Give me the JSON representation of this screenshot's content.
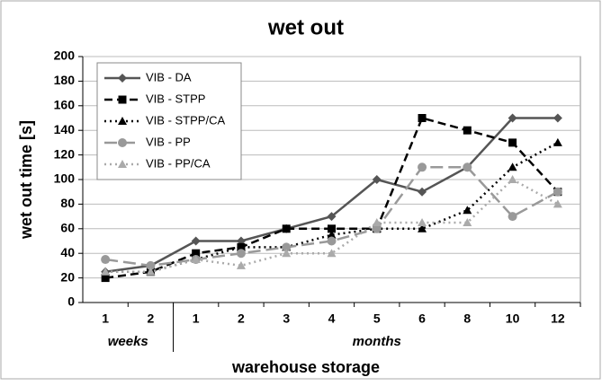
{
  "chart_data": {
    "type": "line",
    "title": "wet out",
    "x_label": "warehouse storage",
    "y_label": "wet out time [s]",
    "categories": [
      "1",
      "2",
      "1",
      "2",
      "3",
      "4",
      "5",
      "6",
      "8",
      "10",
      "12"
    ],
    "groups": [
      {
        "label": "weeks",
        "span": 2
      },
      {
        "label": "months",
        "span": 9
      }
    ],
    "series": [
      {
        "name": "VIB - DA",
        "color": "#555555",
        "dash": "solid",
        "marker": "diamond",
        "values": [
          25,
          30,
          50,
          50,
          60,
          70,
          100,
          90,
          110,
          150,
          150
        ]
      },
      {
        "name": "VIB - STPP",
        "color": "#000000",
        "dash": "dashed",
        "marker": "square",
        "values": [
          20,
          25,
          40,
          45,
          60,
          60,
          60,
          150,
          140,
          130,
          90
        ]
      },
      {
        "name": "VIB - STPP/CA",
        "color": "#000000",
        "dash": "dotted",
        "marker": "triangle",
        "values": [
          25,
          25,
          35,
          45,
          45,
          55,
          60,
          60,
          75,
          110,
          130
        ]
      },
      {
        "name": "VIB - PP",
        "color": "#999999",
        "dash": "longdash",
        "marker": "circle",
        "values": [
          35,
          30,
          35,
          40,
          45,
          50,
          60,
          110,
          110,
          70,
          90
        ]
      },
      {
        "name": "VIB - PP/CA",
        "color": "#aaaaaa",
        "dash": "dotted",
        "marker": "triangle",
        "values": [
          25,
          25,
          35,
          30,
          40,
          40,
          65,
          65,
          65,
          100,
          80
        ]
      }
    ],
    "ylim": [
      0,
      200
    ],
    "yticks": [
      0,
      20,
      40,
      60,
      80,
      100,
      120,
      140,
      160,
      180,
      200
    ],
    "grid": true,
    "legend": "top-left"
  }
}
